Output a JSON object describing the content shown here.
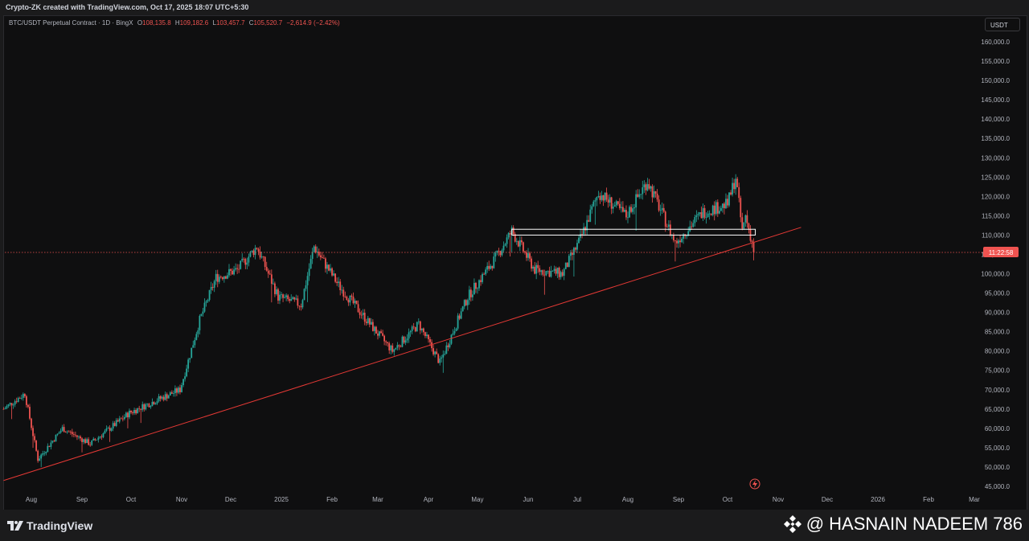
{
  "header": {
    "credit": "Crypto-ZK created with TradingView.com, Oct 17, 2025 18:07 UTC+5:30"
  },
  "symbol": {
    "name": "BTC/USDT Perpetual Contract · 1D · BingX",
    "open_label": "O",
    "open": "108,135.8",
    "high_label": "H",
    "high": "109,182.6",
    "low_label": "L",
    "low": "103,457.7",
    "close_label": "C",
    "close": "105,520.7",
    "change": "−2,614.9 (−2.42%)"
  },
  "currency_button": "USDT",
  "price_label": "11:22:58",
  "colors": {
    "up": "#26a69a",
    "down": "#ef5350",
    "background": "#0f0f10",
    "trendline": "#e53935",
    "zone": "#ffffff",
    "grid_text": "#b2b5be"
  },
  "footer": {
    "brand": "TradingView",
    "watermark": "@ HASNAIN NADEEM 786"
  },
  "icons": [
    "tradingview-logo-icon",
    "binance-diamond-icon",
    "lightning-icon"
  ],
  "chart_data": {
    "type": "candlestick",
    "symbol": "BTC/USDT Perpetual Contract",
    "interval": "1D",
    "exchange": "BingX",
    "y_axis": {
      "labels": [
        "160,000.0",
        "155,000.0",
        "150,000.0",
        "145,000.0",
        "140,000.0",
        "135,000.0",
        "130,000.0",
        "125,000.0",
        "120,000.0",
        "115,000.0",
        "110,000.0",
        "105,000.0",
        "100,000.0",
        "95,000.0",
        "90,000.0",
        "85,000.0",
        "80,000.0",
        "75,000.0",
        "70,000.0",
        "65,000.0",
        "60,000.0",
        "55,000.0",
        "50,000.0",
        "45,000.0"
      ],
      "values": [
        160000,
        155000,
        150000,
        145000,
        140000,
        135000,
        130000,
        125000,
        120000,
        115000,
        110000,
        105000,
        100000,
        95000,
        90000,
        85000,
        80000,
        75000,
        70000,
        65000,
        60000,
        55000,
        50000,
        45000
      ],
      "range": [
        45000,
        160000
      ]
    },
    "x_axis": {
      "labels": [
        "Aug",
        "Sep",
        "Oct",
        "Nov",
        "Dec",
        "2025",
        "Feb",
        "Mar",
        "Apr",
        "May",
        "Jun",
        "Jul",
        "Aug",
        "Sep",
        "Oct",
        "Nov",
        "Dec",
        "2026",
        "Feb",
        "Mar"
      ],
      "dates": [
        "2024-08-01",
        "2024-09-01",
        "2024-10-01",
        "2024-11-01",
        "2024-12-01",
        "2025-01-01",
        "2025-02-01",
        "2025-03-01",
        "2025-04-01",
        "2025-05-01",
        "2025-06-01",
        "2025-07-01",
        "2025-08-01",
        "2025-09-01",
        "2025-10-01",
        "2025-11-01",
        "2025-12-01",
        "2026-01-01",
        "2026-02-01",
        "2026-03-01"
      ]
    },
    "close_series": {
      "dates": [
        "2024-07-15",
        "2024-07-28",
        "2024-08-05",
        "2024-08-20",
        "2024-09-06",
        "2024-09-30",
        "2024-10-15",
        "2024-10-31",
        "2024-11-12",
        "2024-11-22",
        "2024-12-05",
        "2024-12-17",
        "2024-12-30",
        "2025-01-13",
        "2025-01-21",
        "2025-02-05",
        "2025-02-26",
        "2025-03-10",
        "2025-03-26",
        "2025-04-08",
        "2025-04-25",
        "2025-05-12",
        "2025-05-22",
        "2025-06-05",
        "2025-06-22",
        "2025-07-03",
        "2025-07-14",
        "2025-07-31",
        "2025-08-13",
        "2025-08-30",
        "2025-09-16",
        "2025-10-01",
        "2025-10-06",
        "2025-10-10",
        "2025-10-12",
        "2025-10-16",
        "2025-10-17"
      ],
      "values": [
        65000,
        69000,
        52000,
        60000,
        56000,
        64000,
        67000,
        70000,
        88000,
        99000,
        101000,
        107000,
        94000,
        92000,
        107000,
        97000,
        86000,
        80000,
        87000,
        77000,
        94000,
        104000,
        111000,
        101000,
        100000,
        109000,
        121000,
        115000,
        124000,
        108000,
        116000,
        118000,
        125000,
        111000,
        115000,
        108135.8,
        105520.7
      ]
    },
    "last_candle": {
      "open": 108135.8,
      "high": 109182.6,
      "low": 103457.7,
      "close": 105520.7,
      "change": -2614.9,
      "change_pct": -2.42
    },
    "current_price_line": 105520.7,
    "trendline": {
      "start": {
        "date": "2024-07-15",
        "price": 46500
      },
      "end": {
        "date": "2025-11-15",
        "price": 112000
      }
    },
    "resistance_zone": {
      "from": "2025-05-22",
      "to": "2025-10-18",
      "low": 110000,
      "high": 111500
    },
    "grid": false,
    "legend": "none"
  }
}
